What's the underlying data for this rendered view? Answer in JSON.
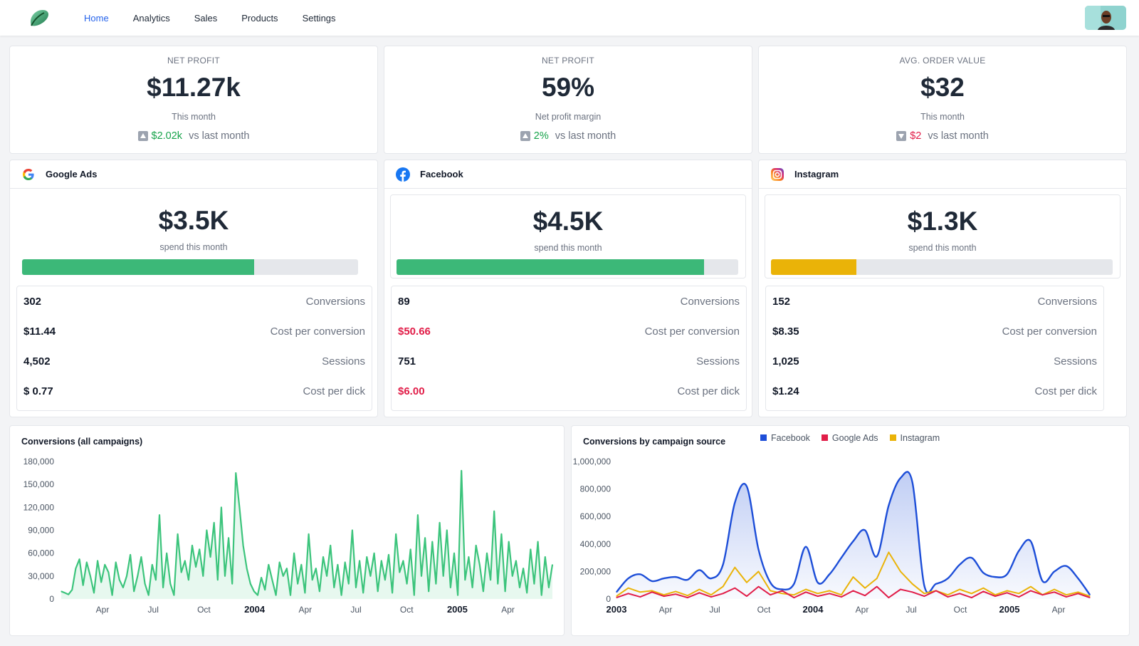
{
  "nav": {
    "items": [
      {
        "label": "Home",
        "active": true
      },
      {
        "label": "Analytics",
        "active": false
      },
      {
        "label": "Sales",
        "active": false
      },
      {
        "label": "Products",
        "active": false
      },
      {
        "label": "Settings",
        "active": false
      }
    ]
  },
  "stats": [
    {
      "label": "NET PROFIT",
      "value": "$11.27k",
      "sub": "This month",
      "delta": "$2.02k",
      "direction": "up",
      "compare": "vs last month"
    },
    {
      "label": "NET PROFIT",
      "value": "59%",
      "sub": "Net profit margin",
      "delta": "2%",
      "direction": "up",
      "compare": "vs last month"
    },
    {
      "label": "AVG. ORDER VALUE",
      "value": "$32",
      "sub": "This month",
      "delta": "$2",
      "direction": "down",
      "compare": "vs last month"
    }
  ],
  "ads": [
    {
      "name": "Google Ads",
      "icon": "google-icon",
      "spend": "$3.5K",
      "spend_caption": "spend this month",
      "progress": 0.69,
      "bar_color": "#3cb878",
      "metrics": [
        {
          "value": "302",
          "label": "Conversions",
          "highlight": false
        },
        {
          "value": "$11.44",
          "label": "Cost per conversion",
          "highlight": false
        },
        {
          "value": "4,502",
          "label": "Sessions",
          "highlight": false
        },
        {
          "value": "$ 0.77",
          "label": "Cost per dick",
          "highlight": false
        }
      ]
    },
    {
      "name": "Facebook",
      "icon": "facebook-icon",
      "spend": "$4.5K",
      "spend_caption": "spend this month",
      "progress": 0.9,
      "bar_color": "#3cb878",
      "metrics": [
        {
          "value": "89",
          "label": "Conversions",
          "highlight": false
        },
        {
          "value": "$50.66",
          "label": "Cost per conversion",
          "highlight": true
        },
        {
          "value": "751",
          "label": "Sessions",
          "highlight": false
        },
        {
          "value": "$6.00",
          "label": "Cost per dick",
          "highlight": true
        }
      ]
    },
    {
      "name": "Instagram",
      "icon": "instagram-icon",
      "spend": "$1.3K",
      "spend_caption": "spend this month",
      "progress": 0.25,
      "bar_color": "#eab308",
      "metrics": [
        {
          "value": "152",
          "label": "Conversions",
          "highlight": false
        },
        {
          "value": "$8.35",
          "label": "Cost per conversion",
          "highlight": false
        },
        {
          "value": "1,025",
          "label": "Sessions",
          "highlight": false
        },
        {
          "value": "$1.24",
          "label": "Cost per dick",
          "highlight": false
        }
      ]
    }
  ],
  "colors": {
    "accent": "#2563eb",
    "positive": "#16a34a",
    "negative": "#e11d48",
    "line_green": "#3cc47c",
    "facebook": "#1d4ed8",
    "google": "#e11d48",
    "instagram": "#eab308"
  },
  "chart_data": [
    {
      "type": "line",
      "title": "Conversions (all campaigns)",
      "ylim": [
        0,
        180000
      ],
      "y_ticks": [
        "180,000",
        "150,000",
        "120,000",
        "90,000",
        "60,000",
        "30,000",
        "0"
      ],
      "x_ticks": [
        {
          "label": "Apr",
          "bold": false
        },
        {
          "label": "Jul",
          "bold": false
        },
        {
          "label": "Oct",
          "bold": false
        },
        {
          "label": "2004",
          "bold": true
        },
        {
          "label": "Apr",
          "bold": false
        },
        {
          "label": "Jul",
          "bold": false
        },
        {
          "label": "Oct",
          "bold": false
        },
        {
          "label": "2005",
          "bold": true
        },
        {
          "label": "Apr",
          "bold": false
        }
      ],
      "x_range": [
        "2003-01",
        "2005-06"
      ],
      "series": [
        {
          "values": [
            10000,
            8000,
            6000,
            12000,
            40000,
            52000,
            18000,
            48000,
            30000,
            8000,
            50000,
            22000,
            45000,
            35000,
            5000,
            48000,
            25000,
            15000,
            30000,
            58000,
            10000,
            30000,
            55000,
            20000,
            5000,
            45000,
            25000,
            110000,
            15000,
            60000,
            20000,
            5000,
            85000,
            35000,
            50000,
            25000,
            70000,
            42000,
            65000,
            30000,
            90000,
            55000,
            100000,
            25000,
            120000,
            30000,
            80000,
            20000,
            165000,
            120000,
            70000,
            40000,
            20000,
            10000,
            5000,
            28000,
            12000,
            45000,
            25000,
            5000,
            48000,
            30000,
            40000,
            5000,
            60000,
            20000,
            45000,
            8000,
            85000,
            25000,
            40000,
            10000,
            55000,
            30000,
            70000,
            15000,
            45000,
            5000,
            48000,
            20000,
            90000,
            15000,
            50000,
            8000,
            55000,
            30000,
            60000,
            10000,
            50000,
            25000,
            58000,
            8000,
            85000,
            35000,
            50000,
            20000,
            65000,
            5000,
            110000,
            30000,
            80000,
            10000,
            75000,
            20000,
            100000,
            30000,
            90000,
            15000,
            60000,
            5000,
            168000,
            25000,
            55000,
            15000,
            70000,
            45000,
            10000,
            60000,
            25000,
            115000,
            20000,
            85000,
            10000,
            75000,
            30000,
            50000,
            15000,
            40000,
            8000,
            65000,
            20000,
            75000,
            5000,
            55000,
            15000,
            45000
          ]
        }
      ]
    },
    {
      "type": "area",
      "title": "Conversions by campaign source",
      "ylim": [
        0,
        1000000
      ],
      "y_ticks": [
        "1,000,000",
        "800,000",
        "600,000",
        "400,000",
        "200,000",
        "0"
      ],
      "x_ticks": [
        {
          "label": "2003",
          "bold": true
        },
        {
          "label": "Apr",
          "bold": false
        },
        {
          "label": "Jul",
          "bold": false
        },
        {
          "label": "Oct",
          "bold": false
        },
        {
          "label": "2004",
          "bold": true
        },
        {
          "label": "Apr",
          "bold": false
        },
        {
          "label": "Jul",
          "bold": false
        },
        {
          "label": "Oct",
          "bold": false
        },
        {
          "label": "2005",
          "bold": true
        },
        {
          "label": "Apr",
          "bold": false
        }
      ],
      "x_range": [
        "2003-01",
        "2005-06"
      ],
      "legend": [
        {
          "name": "Facebook",
          "color": "#1d4ed8"
        },
        {
          "name": "Google Ads",
          "color": "#e11d48"
        },
        {
          "name": "Instagram",
          "color": "#eab308"
        }
      ],
      "series": [
        {
          "name": "Facebook",
          "values": [
            50000,
            150000,
            180000,
            130000,
            150000,
            160000,
            140000,
            210000,
            150000,
            250000,
            700000,
            820000,
            360000,
            120000,
            70000,
            110000,
            380000,
            120000,
            180000,
            300000,
            420000,
            500000,
            310000,
            680000,
            880000,
            850000,
            100000,
            110000,
            150000,
            250000,
            300000,
            190000,
            160000,
            180000,
            350000,
            420000,
            130000,
            200000,
            240000,
            150000,
            30000
          ]
        },
        {
          "name": "Google Ads",
          "values": [
            10000,
            40000,
            15000,
            50000,
            20000,
            35000,
            10000,
            45000,
            15000,
            40000,
            80000,
            20000,
            90000,
            30000,
            60000,
            10000,
            50000,
            20000,
            40000,
            15000,
            60000,
            25000,
            90000,
            10000,
            70000,
            50000,
            20000,
            60000,
            15000,
            40000,
            10000,
            55000,
            20000,
            45000,
            15000,
            60000,
            30000,
            50000,
            15000,
            40000,
            10000
          ]
        },
        {
          "name": "Instagram",
          "values": [
            20000,
            80000,
            50000,
            60000,
            30000,
            55000,
            25000,
            70000,
            30000,
            90000,
            230000,
            120000,
            200000,
            60000,
            40000,
            30000,
            70000,
            40000,
            60000,
            30000,
            160000,
            80000,
            150000,
            340000,
            200000,
            110000,
            40000,
            60000,
            30000,
            70000,
            40000,
            80000,
            30000,
            60000,
            40000,
            90000,
            30000,
            70000,
            30000,
            50000,
            20000
          ]
        }
      ]
    }
  ]
}
